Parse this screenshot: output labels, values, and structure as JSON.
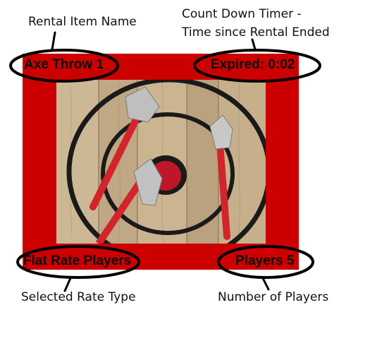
{
  "annotations": {
    "rental_item_name": "Rental Item Name",
    "countdown_line1": "Count Down Timer -",
    "countdown_line2": "Time since Rental Ended",
    "selected_rate_type": "Selected Rate Type",
    "number_of_players": "Number of Players"
  },
  "tile": {
    "item_name": "Axe Throw 1",
    "timer": "Expired: 0:02",
    "rate_type": "Flat Rate Players",
    "players": "Players 5",
    "background_color": "#cc0000",
    "photo": "axe-target-image"
  }
}
